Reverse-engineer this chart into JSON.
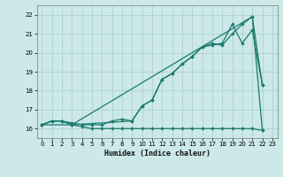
{
  "xlabel": "Humidex (Indice chaleur)",
  "bg_color": "#cce8e8",
  "grid_color": "#aacccc",
  "line_color": "#1a7a6e",
  "xlim": [
    -0.5,
    23.5
  ],
  "ylim": [
    15.5,
    22.5
  ],
  "yticks": [
    16,
    17,
    18,
    19,
    20,
    21,
    22
  ],
  "xticks": [
    0,
    1,
    2,
    3,
    4,
    5,
    6,
    7,
    8,
    9,
    10,
    11,
    12,
    13,
    14,
    15,
    16,
    17,
    18,
    19,
    20,
    21,
    22,
    23
  ],
  "series1_x": [
    0,
    1,
    2,
    3,
    4,
    5,
    6,
    7,
    8,
    9,
    10,
    11,
    12,
    13,
    14,
    15,
    16,
    17,
    18,
    19,
    20,
    21,
    22
  ],
  "series1_y": [
    16.2,
    16.4,
    16.4,
    16.2,
    16.1,
    16.0,
    16.0,
    16.0,
    16.0,
    16.0,
    16.0,
    16.0,
    16.0,
    16.0,
    16.0,
    16.0,
    16.0,
    16.0,
    16.0,
    16.0,
    16.0,
    16.0,
    15.9
  ],
  "series2_x": [
    0,
    1,
    2,
    3,
    4,
    5,
    6,
    7,
    8,
    9,
    10,
    11,
    12,
    13,
    14,
    15,
    16,
    17,
    18,
    19,
    20,
    21,
    22
  ],
  "series2_y": [
    16.2,
    16.4,
    16.4,
    16.3,
    16.2,
    16.2,
    16.2,
    16.4,
    16.5,
    16.4,
    17.2,
    17.5,
    18.6,
    18.9,
    19.4,
    19.8,
    20.3,
    20.4,
    20.5,
    21.5,
    20.5,
    21.2,
    18.3
  ],
  "series3_x": [
    0,
    3,
    21,
    22
  ],
  "series3_y": [
    16.2,
    16.2,
    21.9,
    15.9
  ],
  "series4_x": [
    0,
    1,
    2,
    3,
    9,
    10,
    11,
    12,
    13,
    14,
    15,
    16,
    17,
    18,
    19,
    20,
    21,
    22
  ],
  "series4_y": [
    16.2,
    16.4,
    16.4,
    16.2,
    16.4,
    17.2,
    17.5,
    18.6,
    18.9,
    19.4,
    19.8,
    20.3,
    20.5,
    20.4,
    21.0,
    21.5,
    21.9,
    18.3
  ]
}
